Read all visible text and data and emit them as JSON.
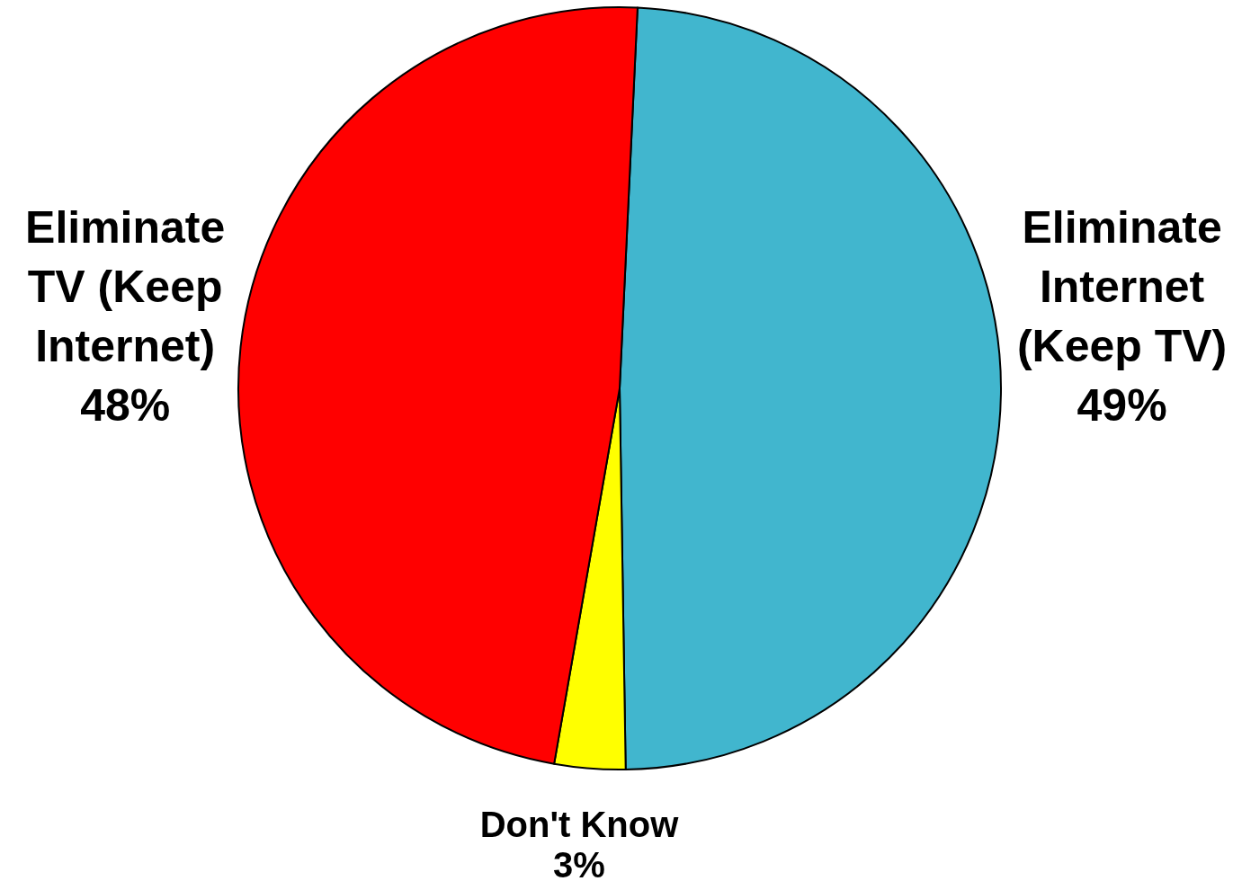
{
  "chart_data": {
    "type": "pie",
    "categories": [
      "Eliminate Internet (Keep TV)",
      "Don't Know",
      "Eliminate TV (Keep Internet)"
    ],
    "values": [
      49,
      3,
      48
    ],
    "colors": [
      "#41b6ce",
      "#ffff00",
      "#ff0000"
    ],
    "value_labels": [
      "49%",
      "3%",
      "48%"
    ]
  }
}
